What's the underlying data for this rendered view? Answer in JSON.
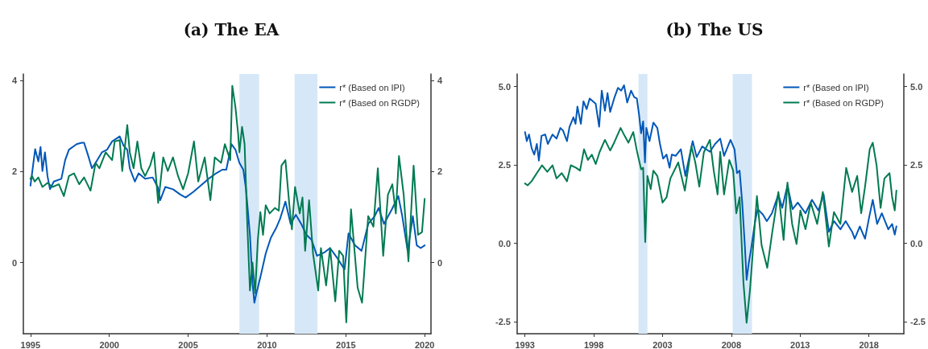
{
  "chart_data": [
    {
      "type": "line",
      "title": "(a) The EA",
      "xlim": [
        1994.55,
        2020.4
      ],
      "xticks": [
        1995,
        2000,
        2005,
        2010,
        2015,
        2020
      ],
      "ylim": [
        -1.56,
        4.14
      ],
      "yticks": [
        0,
        2,
        4
      ],
      "y2lim": [
        -1.56,
        4.14
      ],
      "y2ticks": [
        0,
        2,
        4
      ],
      "grid": false,
      "legend": "top right",
      "marker": "none",
      "line_style": "solid",
      "bands": [
        {
          "axis": "x",
          "from": 2008.25,
          "to": 2009.5,
          "color": "#d6e8f8"
        },
        {
          "axis": "x",
          "from": 2011.75,
          "to": 2013.2,
          "color": "#d6e8f8"
        }
      ],
      "series": [
        {
          "name": "r* (Based on IPI)",
          "color": "#0057b8",
          "x": [
            1995.0,
            1995.3,
            1995.5,
            1995.64,
            1995.76,
            1995.92,
            1996.08,
            1996.24,
            1996.48,
            1996.96,
            1997.2,
            1997.44,
            1997.93,
            1998.25,
            1998.4,
            1998.65,
            1998.9,
            1999.13,
            1999.53,
            1999.86,
            2000.18,
            2000.66,
            2000.9,
            2001.14,
            2001.3,
            2001.62,
            2001.86,
            2002.27,
            2002.75,
            2003.07,
            2003.23,
            2003.55,
            2004.04,
            2004.52,
            2004.84,
            2005.32,
            2005.8,
            2006.29,
            2006.77,
            2007.17,
            2007.42,
            2007.75,
            2008.0,
            2008.25,
            2008.5,
            2008.67,
            2008.92,
            2009.08,
            2009.2,
            2009.33,
            2009.58,
            2009.92,
            2010.25,
            2010.58,
            2010.83,
            2011.17,
            2011.5,
            2011.83,
            2012.17,
            2012.5,
            2012.83,
            2013.17,
            2013.67,
            2014.0,
            2014.42,
            2014.92,
            2015.17,
            2015.58,
            2016.0,
            2016.42,
            2016.83,
            2017.08,
            2017.42,
            2017.92,
            2018.33,
            2018.58,
            2018.92,
            2019.25,
            2019.5,
            2019.75,
            2020.0
          ],
          "values": [
            1.69,
            2.49,
            2.22,
            2.54,
            2.01,
            2.42,
            1.9,
            1.61,
            1.78,
            1.84,
            2.25,
            2.48,
            2.6,
            2.63,
            2.63,
            2.36,
            2.07,
            2.19,
            2.42,
            2.48,
            2.66,
            2.77,
            2.57,
            2.48,
            2.07,
            1.78,
            1.96,
            1.84,
            1.87,
            1.66,
            1.37,
            1.66,
            1.61,
            1.49,
            1.43,
            1.55,
            1.69,
            1.84,
            1.96,
            2.04,
            2.04,
            2.6,
            2.48,
            2.19,
            2.04,
            1.61,
            0.61,
            -0.44,
            -0.88,
            -0.67,
            -0.32,
            0.2,
            0.55,
            0.76,
            0.96,
            1.34,
            0.85,
            1.05,
            0.85,
            0.61,
            0.5,
            0.15,
            0.23,
            0.32,
            0.12,
            -0.15,
            0.64,
            0.38,
            0.26,
            0.85,
            1.02,
            1.2,
            0.85,
            1.17,
            1.46,
            1.02,
            0.26,
            1.02,
            0.38,
            0.32,
            0.38
          ]
        },
        {
          "name": "r* (Based on RGDP)",
          "color": "#007a50",
          "x": [
            1995.0,
            1995.1,
            1995.27,
            1995.5,
            1995.76,
            1996.08,
            1996.4,
            1996.8,
            1997.12,
            1997.44,
            1997.76,
            1998.09,
            1998.4,
            1998.81,
            1999.13,
            1999.37,
            1999.77,
            2000.18,
            2000.34,
            2000.66,
            2000.82,
            2001.14,
            2001.3,
            2001.54,
            2001.78,
            2002.03,
            2002.27,
            2002.59,
            2002.83,
            2003.1,
            2003.42,
            2003.71,
            2004.04,
            2004.36,
            2004.68,
            2005.0,
            2005.37,
            2005.64,
            2006.05,
            2006.41,
            2006.69,
            2007.09,
            2007.33,
            2007.67,
            2007.8,
            2008.0,
            2008.17,
            2008.25,
            2008.42,
            2008.58,
            2008.75,
            2008.92,
            2009.08,
            2009.25,
            2009.42,
            2009.58,
            2009.75,
            2009.92,
            2010.17,
            2010.5,
            2010.75,
            2010.92,
            2011.17,
            2011.42,
            2011.58,
            2011.78,
            2012.08,
            2012.25,
            2012.42,
            2012.67,
            2012.92,
            2013.25,
            2013.42,
            2013.75,
            2014.0,
            2014.33,
            2014.58,
            2014.83,
            2015.03,
            2015.33,
            2015.75,
            2016.03,
            2016.42,
            2016.75,
            2017.03,
            2017.37,
            2017.67,
            2017.95,
            2018.17,
            2018.37,
            2018.67,
            2018.97,
            2019.3,
            2019.58,
            2019.83,
            2020.0
          ],
          "values": [
            1.84,
            1.9,
            1.78,
            1.87,
            1.66,
            1.75,
            1.66,
            1.72,
            1.46,
            1.9,
            1.96,
            1.72,
            1.87,
            1.58,
            2.19,
            2.07,
            2.42,
            2.25,
            2.66,
            2.69,
            2.01,
            3.02,
            2.42,
            2.07,
            2.66,
            2.07,
            1.9,
            2.13,
            2.42,
            1.31,
            2.31,
            2.01,
            2.31,
            1.9,
            1.61,
            1.96,
            2.66,
            1.78,
            2.31,
            1.37,
            2.31,
            2.19,
            2.6,
            2.25,
            3.88,
            3.41,
            2.83,
            2.42,
            2.98,
            2.6,
            0.85,
            -0.61,
            0,
            -0.67,
            0.5,
            1.11,
            0.61,
            1.26,
            1.08,
            1.2,
            1.14,
            2.13,
            2.25,
            1.26,
            0.73,
            1.66,
            1.08,
            1.43,
            0.26,
            1.37,
            0.2,
            -0.61,
            0.32,
            -0.5,
            0.32,
            -0.85,
            0.26,
            0.15,
            -1.31,
            1.17,
            -0.55,
            -0.88,
            1.02,
            0.79,
            2.07,
            0.15,
            1.49,
            1.72,
            1.08,
            2.34,
            1.49,
            0.03,
            2.13,
            0.61,
            0.67,
            1.4
          ]
        }
      ]
    },
    {
      "type": "line",
      "title": "(b) The US",
      "xlim": [
        1992.43,
        2020.54
      ],
      "xticks": [
        1993,
        1998,
        2003,
        2008,
        2013,
        2018
      ],
      "ylim": [
        -2.88,
        5.4
      ],
      "yticks": [
        {
          "value": -2.5,
          "label": "-2.5"
        },
        {
          "value": 0,
          "label": "0.0"
        },
        {
          "value": 2.5,
          "label": "2.5"
        },
        {
          "value": 5,
          "label": "5.0"
        }
      ],
      "y2lim": [
        -2.88,
        5.4
      ],
      "y2ticks": [
        {
          "value": -2.5,
          "label": "-2.5"
        },
        {
          "value": 0,
          "label": "0.0"
        },
        {
          "value": 2.5,
          "label": "2.5"
        },
        {
          "value": 5,
          "label": "5.0"
        }
      ],
      "grid": false,
      "legend": "top right",
      "marker": "none",
      "line_style": "solid",
      "bands": [
        {
          "axis": "x",
          "from": 2001.25,
          "to": 2001.9,
          "color": "#d6e8f8"
        },
        {
          "axis": "x",
          "from": 2008.1,
          "to": 2009.5,
          "color": "#d6e8f8"
        }
      ],
      "series": [
        {
          "name": "r* (Based on IPI)",
          "color": "#0057b8",
          "x": [
            1993.0,
            1993.13,
            1993.29,
            1993.48,
            1993.67,
            1993.86,
            1994.01,
            1994.2,
            1994.47,
            1994.66,
            1995.0,
            1995.29,
            1995.57,
            1995.76,
            1996.05,
            1996.24,
            1996.52,
            1996.67,
            1996.81,
            1997.06,
            1997.25,
            1997.48,
            1997.7,
            1998.14,
            1998.39,
            1998.58,
            1998.81,
            1999.0,
            1999.19,
            1999.48,
            1999.76,
            1999.99,
            2000.2,
            2000.43,
            2000.71,
            2000.94,
            2001.13,
            2001.29,
            2001.44,
            2001.59,
            2001.72,
            2001.82,
            2002.05,
            2002.33,
            2002.62,
            2002.81,
            2003.04,
            2003.29,
            2003.51,
            2003.67,
            2003.95,
            2004.33,
            2004.66,
            2004.94,
            2005.19,
            2005.48,
            2005.88,
            2006.44,
            2006.82,
            2007.19,
            2007.47,
            2007.94,
            2008.23,
            2008.41,
            2008.6,
            2008.79,
            2008.98,
            2009.11,
            2009.26,
            2009.45,
            2009.73,
            2009.92,
            2010.29,
            2010.58,
            2010.95,
            2011.42,
            2011.7,
            2012.08,
            2012.45,
            2012.83,
            2013.39,
            2013.86,
            2014.33,
            2014.71,
            2015.09,
            2015.46,
            2015.93,
            2016.31,
            2016.78,
            2016.97,
            2017.34,
            2017.72,
            2018.0,
            2018.28,
            2018.6,
            2018.94,
            2019.41,
            2019.69,
            2019.88,
            2020.0
          ],
          "values": [
            3.55,
            3.26,
            3.47,
            3.04,
            2.83,
            3.17,
            2.64,
            3.43,
            3.47,
            3.17,
            3.47,
            3.34,
            3.68,
            3.6,
            3.26,
            3.72,
            4.02,
            3.81,
            4.36,
            3.81,
            4.53,
            4.28,
            4.62,
            4.45,
            3.72,
            4.87,
            4.23,
            4.79,
            4.19,
            4.62,
            4.96,
            4.87,
            5.04,
            4.49,
            4.87,
            4.66,
            4.62,
            4.11,
            3.51,
            3.89,
            2.58,
            3.68,
            3.26,
            3.85,
            3.68,
            3.17,
            2.7,
            2.83,
            2.41,
            2.83,
            2.79,
            3.0,
            2.15,
            2.75,
            3.26,
            2.75,
            3.09,
            2.92,
            3.17,
            3.34,
            2.79,
            3.3,
            3.0,
            2.24,
            2.32,
            1.3,
            -0.06,
            -1.16,
            -0.65,
            -0.14,
            0.71,
            1.09,
            0.92,
            0.71,
            0.96,
            1.56,
            1.13,
            1.85,
            1.09,
            1.3,
            0.96,
            1.39,
            1.05,
            1.56,
            0.37,
            0.71,
            0.45,
            0.71,
            0.37,
            0.15,
            0.54,
            0.15,
            0.79,
            1.39,
            0.62,
            0.96,
            0.45,
            0.62,
            0.28,
            0.54
          ]
        },
        {
          "name": "r* (Based on RGDP)",
          "color": "#007a50",
          "x": [
            1993.0,
            1993.19,
            1993.48,
            1993.86,
            1994.24,
            1994.62,
            1995.0,
            1995.29,
            1995.67,
            1996.05,
            1996.33,
            1996.71,
            1997.0,
            1997.29,
            1997.57,
            1997.86,
            1998.14,
            1998.43,
            1998.81,
            1999.19,
            1999.48,
            1999.95,
            2000.24,
            2000.52,
            2000.87,
            2001.13,
            2001.44,
            2001.59,
            2001.74,
            2001.9,
            2002.14,
            2002.33,
            2002.62,
            2003.0,
            2003.29,
            2003.57,
            2004.14,
            2004.62,
            2005.1,
            2005.38,
            2005.67,
            2006.0,
            2006.44,
            2006.72,
            2007.0,
            2007.19,
            2007.47,
            2007.85,
            2008.13,
            2008.36,
            2008.6,
            2008.88,
            2009.11,
            2009.35,
            2009.54,
            2009.86,
            2010.2,
            2010.61,
            2010.95,
            2011.42,
            2011.8,
            2012.08,
            2012.42,
            2012.74,
            2013.02,
            2013.39,
            2013.77,
            2014.24,
            2014.65,
            2015.09,
            2015.46,
            2015.93,
            2016.35,
            2016.78,
            2017.15,
            2017.44,
            2017.72,
            2018.06,
            2018.28,
            2018.56,
            2018.85,
            2019.13,
            2019.5,
            2019.69,
            2019.88,
            2020.0
          ],
          "values": [
            1.91,
            1.85,
            1.98,
            2.24,
            2.49,
            2.28,
            2.49,
            2.07,
            2.24,
            1.98,
            2.49,
            2.41,
            2.32,
            3.0,
            2.66,
            2.83,
            2.53,
            2.92,
            3.3,
            2.96,
            3.21,
            3.68,
            3.43,
            3.21,
            3.55,
            2.96,
            2.36,
            2.41,
            0.04,
            2.15,
            1.73,
            2.32,
            2.15,
            1.3,
            1.47,
            2.07,
            2.58,
            1.68,
            3.09,
            2.58,
            1.81,
            2.9,
            3.3,
            2.32,
            1.56,
            2.92,
            1.56,
            2.66,
            2.32,
            0.96,
            1.47,
            -1.25,
            -2.53,
            -1.51,
            -0.4,
            1.51,
            -0.06,
            -0.78,
            0.28,
            1.64,
            0.11,
            1.94,
            0.62,
            -0.02,
            1.05,
            0.45,
            1.3,
            0.62,
            1.64,
            -0.1,
            1.0,
            0.62,
            2.41,
            1.64,
            2.15,
            0.96,
            1.81,
            3.0,
            3.21,
            2.49,
            1.13,
            2.07,
            2.24,
            1.47,
            1.05,
            1.68
          ]
        }
      ]
    }
  ]
}
